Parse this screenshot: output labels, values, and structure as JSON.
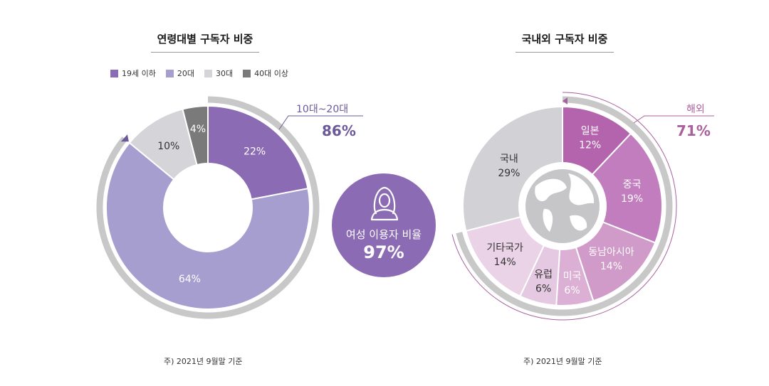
{
  "chart_data": [
    {
      "type": "pie",
      "title": "연령대별 구독자 비중",
      "legend": [
        "19세 이하",
        "20대",
        "30대",
        "40대 이상"
      ],
      "slices": [
        {
          "label": "19세 이하",
          "value": 22,
          "text": "22%",
          "color": "#8b6bb3"
        },
        {
          "label": "20대",
          "value": 64,
          "text": "64%",
          "color": "#a79ed0"
        },
        {
          "label": "30대",
          "value": 10,
          "text": "10%",
          "color": "#d5d5d9"
        },
        {
          "label": "40대 이상",
          "value": 4,
          "text": "4%",
          "color": "#7a7a7a"
        }
      ],
      "callout": {
        "label": "10대~20대",
        "value": "86%"
      },
      "footnote": "주) 2021년 9월말 기준"
    },
    {
      "type": "pie",
      "title": "국내외 구독자 비중",
      "slices": [
        {
          "label": "일본",
          "value": 12,
          "text": "12%",
          "color": "#b364ad"
        },
        {
          "label": "중국",
          "value": 19,
          "text": "19%",
          "color": "#c17dbd"
        },
        {
          "label": "동남아시아",
          "value": 14,
          "text": "14%",
          "color": "#d09ac9"
        },
        {
          "label": "미국",
          "value": 6,
          "text": "6%",
          "color": "#dbb0d4"
        },
        {
          "label": "유럽",
          "value": 6,
          "text": "6%",
          "color": "#e5c8e1"
        },
        {
          "label": "기타국가",
          "value": 14,
          "text": "14%",
          "color": "#ead3e7"
        },
        {
          "label": "국내",
          "value": 29,
          "text": "29%",
          "color": "#d2d2d6"
        }
      ],
      "callout": {
        "label": "해외",
        "value": "71%"
      },
      "footnote": "주) 2021년 9월말 기준"
    }
  ],
  "center_badge": {
    "label": "여성 이용자 비율",
    "value": "97%",
    "icon": "woman-icon",
    "color": "#8b6bb3"
  },
  "colors": {
    "accent_purple": "#6c5a98",
    "accent_magenta": "#a9609d",
    "ring_gray": "#c8c8c8"
  }
}
